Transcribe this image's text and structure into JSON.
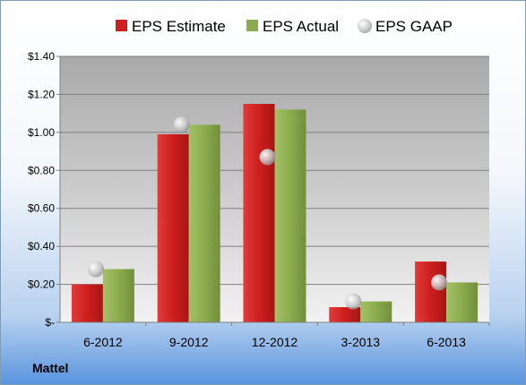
{
  "chart_data": {
    "type": "bar",
    "company": "Mattel",
    "categories": [
      "6-2012",
      "9-2012",
      "12-2012",
      "3-2013",
      "6-2013"
    ],
    "series": [
      {
        "name": "EPS Estimate",
        "type": "bar",
        "color": "#cc1f1f",
        "values": [
          0.2,
          0.99,
          1.15,
          0.08,
          0.32
        ]
      },
      {
        "name": "EPS Actual",
        "type": "bar",
        "color": "#8cab4f",
        "values": [
          0.28,
          1.04,
          1.12,
          0.11,
          0.21
        ]
      },
      {
        "name": "EPS GAAP",
        "type": "point",
        "color": "#c8c8c8",
        "values": [
          0.28,
          1.04,
          0.87,
          0.11,
          0.21
        ]
      }
    ],
    "yticks": [
      "$-",
      "$0.20",
      "$0.40",
      "$0.60",
      "$0.80",
      "$1.00",
      "$1.20",
      "$1.40"
    ],
    "ylim": [
      0,
      1.4
    ],
    "grid": true,
    "legend": "top"
  }
}
